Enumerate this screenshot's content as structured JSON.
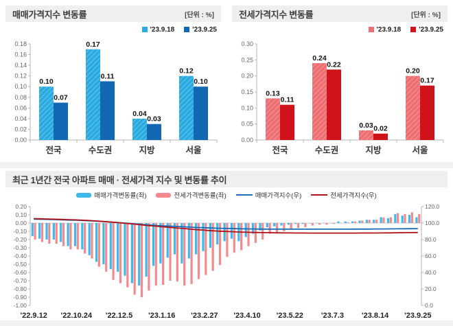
{
  "colors": {
    "accent_light_blue": "#29ABE2",
    "accent_dark_blue": "#1268B3",
    "accent_light_red": "#EF6E72",
    "accent_dark_red": "#D0121A",
    "trend_bar_blue": "#3FB8EA",
    "trend_bar_red": "#F48A8E",
    "trend_line_blue": "#1A6AB5",
    "trend_line_red": "#B0121A",
    "axis_gray": "#b5b5b5",
    "tick_text": "#666666"
  },
  "chart_data": [
    {
      "id": "sale-change",
      "type": "bar",
      "title": "매매가격지수 변동률",
      "unit_label": "[단위 : %]",
      "categories": [
        "전국",
        "수도권",
        "지방",
        "서울"
      ],
      "series": [
        {
          "name": "'23.9.18",
          "values": [
            0.1,
            0.17,
            0.04,
            0.12
          ],
          "color": "#29ABE2",
          "hatch": true
        },
        {
          "name": "'23.9.25",
          "values": [
            0.07,
            0.11,
            0.03,
            0.1
          ],
          "color": "#1268B3",
          "hatch": false
        }
      ],
      "value_labels": [
        [
          "0.10",
          "0.17",
          "0.04",
          "0.12"
        ],
        [
          "0.07",
          "0.11",
          "0.03",
          "0.10"
        ]
      ],
      "ylim": [
        0,
        0.18
      ],
      "yticks": [
        "0.18",
        "0.16",
        "0.14",
        "0.12",
        "0.10",
        "0.08",
        "0.06",
        "0.04",
        "0.02",
        "0.00"
      ],
      "grid": false,
      "legend_position": "top-right"
    },
    {
      "id": "jeonse-change",
      "type": "bar",
      "title": "전세가격지수 변동률",
      "unit_label": "[단위 : %]",
      "categories": [
        "전국",
        "수도권",
        "지방",
        "서울"
      ],
      "series": [
        {
          "name": "'23.9.18",
          "values": [
            0.13,
            0.24,
            0.03,
            0.2
          ],
          "color": "#EF6E72",
          "hatch": true
        },
        {
          "name": "'23.9.25",
          "values": [
            0.11,
            0.22,
            0.02,
            0.17
          ],
          "color": "#D0121A",
          "hatch": false
        }
      ],
      "value_labels": [
        [
          "0.13",
          "0.24",
          "0.03",
          "0.20"
        ],
        [
          "0.11",
          "0.22",
          "0.02",
          "0.17"
        ]
      ],
      "ylim": [
        0,
        0.3
      ],
      "yticks": [
        "0.30",
        "0.25",
        "0.20",
        "0.15",
        "0.10",
        "0.05",
        "0.00"
      ],
      "grid": false,
      "legend_position": "top-right"
    },
    {
      "id": "trend",
      "type": "bar+line",
      "title": "최근 1년간 전국 아파트 매매 · 전세가격 지수 및 변동률 추이",
      "x": [
        "'22.9.12",
        "'22.9.19",
        "'22.9.26",
        "'22.10.3",
        "'22.10.10",
        "'22.10.17",
        "'22.10.24",
        "'22.10.31",
        "'22.11.7",
        "'22.11.14",
        "'22.11.21",
        "'22.11.28",
        "'22.12.5",
        "'22.12.12",
        "'22.12.19",
        "'22.12.26",
        "'23.1.2",
        "'23.1.9",
        "'23.1.16",
        "'23.1.23",
        "'23.1.30",
        "'23.2.6",
        "'23.2.13",
        "'23.2.20",
        "'23.2.27",
        "'23.3.6",
        "'23.3.13",
        "'23.3.20",
        "'23.3.27",
        "'23.4.3",
        "'23.4.10",
        "'23.4.17",
        "'23.4.24",
        "'23.5.1",
        "'23.5.8",
        "'23.5.15",
        "'23.5.22",
        "'23.5.29",
        "'23.6.5",
        "'23.6.12",
        "'23.6.19",
        "'23.6.26",
        "'23.7.3",
        "'23.7.10",
        "'23.7.17",
        "'23.7.24",
        "'23.7.31",
        "'23.8.7",
        "'23.8.14",
        "'23.8.21",
        "'23.8.28",
        "'23.9.4",
        "'23.9.11",
        "'23.9.18",
        "'23.9.25"
      ],
      "xtick_indices": [
        0,
        6,
        12,
        18,
        24,
        30,
        36,
        42,
        48,
        54
      ],
      "xtick_labels": [
        "'22.9.12",
        "'22.10.24",
        "'22.12.5",
        "'23.1.16",
        "'23.2.27",
        "'23.4.10",
        "'23.5.22",
        "'23.7.3",
        "'23.8.14",
        "'23.9.25"
      ],
      "bar_series": [
        {
          "name": "매매가격변동률(좌)",
          "axis": "left",
          "color": "#3FB8EA",
          "values": [
            -0.16,
            -0.19,
            -0.2,
            -0.2,
            -0.23,
            -0.28,
            -0.28,
            -0.32,
            -0.39,
            -0.47,
            -0.5,
            -0.56,
            -0.59,
            -0.64,
            -0.73,
            -0.76,
            -0.65,
            -0.52,
            -0.49,
            -0.42,
            -0.38,
            -0.49,
            -0.43,
            -0.38,
            -0.34,
            -0.3,
            -0.26,
            -0.22,
            -0.19,
            -0.22,
            -0.17,
            -0.13,
            -0.09,
            -0.05,
            -0.04,
            -0.03,
            -0.02,
            -0.01,
            -0.01,
            0.0,
            0.0,
            0.0,
            0.0,
            0.02,
            0.02,
            0.02,
            0.03,
            0.04,
            0.04,
            0.07,
            0.06,
            0.11,
            0.09,
            0.1,
            0.07
          ]
        },
        {
          "name": "전세가격변동률(좌)",
          "axis": "left",
          "color": "#F48A8E",
          "values": [
            -0.2,
            -0.23,
            -0.25,
            -0.25,
            -0.28,
            -0.32,
            -0.32,
            -0.37,
            -0.43,
            -0.53,
            -0.59,
            -0.69,
            -0.73,
            -0.78,
            -0.87,
            -0.9,
            -0.82,
            -0.76,
            -0.75,
            -0.7,
            -0.71,
            -0.76,
            -0.74,
            -0.68,
            -0.63,
            -0.58,
            -0.51,
            -0.41,
            -0.36,
            -0.33,
            -0.28,
            -0.24,
            -0.2,
            -0.13,
            -0.11,
            -0.1,
            -0.08,
            -0.06,
            -0.05,
            -0.03,
            -0.02,
            -0.02,
            -0.01,
            0.0,
            0.01,
            0.02,
            0.03,
            0.04,
            0.04,
            0.07,
            0.07,
            0.12,
            0.11,
            0.13,
            0.11
          ]
        }
      ],
      "line_series": [
        {
          "name": "매매가격지수(우)",
          "axis": "right",
          "color": "#1A6AB5",
          "values": [
            104.7,
            104.6,
            104.4,
            104.2,
            103.9,
            103.6,
            103.4,
            103.0,
            102.7,
            102.2,
            101.7,
            101.1,
            100.5,
            99.9,
            99.2,
            98.4,
            97.8,
            97.2,
            96.7,
            96.3,
            95.9,
            95.5,
            95.0,
            94.6,
            94.3,
            94.0,
            93.7,
            93.5,
            93.3,
            93.1,
            92.9,
            92.8,
            92.7,
            92.7,
            92.6,
            92.6,
            92.6,
            92.6,
            92.6,
            92.6,
            92.6,
            92.6,
            92.6,
            92.6,
            92.6,
            92.7,
            92.7,
            92.7,
            92.8,
            92.8,
            92.9,
            93.0,
            93.1,
            93.2,
            93.2
          ]
        },
        {
          "name": "전세가격지수(우)",
          "axis": "right",
          "color": "#B0121A",
          "values": [
            105.4,
            105.2,
            104.9,
            104.7,
            104.4,
            104.1,
            103.8,
            103.4,
            103.0,
            102.4,
            101.8,
            101.1,
            100.4,
            99.6,
            98.8,
            97.9,
            97.0,
            96.3,
            95.5,
            94.8,
            94.1,
            93.4,
            92.6,
            91.9,
            91.3,
            90.7,
            90.2,
            89.8,
            89.5,
            89.1,
            88.8,
            88.6,
            88.4,
            88.3,
            88.2,
            88.1,
            88.0,
            87.9,
            87.9,
            87.8,
            87.8,
            87.8,
            87.8,
            87.8,
            87.8,
            87.8,
            87.9,
            87.9,
            87.9,
            88.0,
            88.1,
            88.2,
            88.3,
            88.4,
            88.5
          ]
        }
      ],
      "left_ylim": [
        -1.0,
        0.2
      ],
      "left_yticks": [
        "0.20",
        "0.10",
        "0.00",
        "-0.10",
        "-0.20",
        "-0.30",
        "-0.40",
        "-0.50",
        "-0.60",
        "-0.70",
        "-0.80",
        "-0.90",
        "-1.00"
      ],
      "right_ylim": [
        0,
        120
      ],
      "right_yticks": [
        "120.0",
        "100.0",
        "80.0",
        "60.0",
        "40.0",
        "20.0",
        "0.0"
      ],
      "grid": false,
      "legend_position": "top-center"
    }
  ]
}
